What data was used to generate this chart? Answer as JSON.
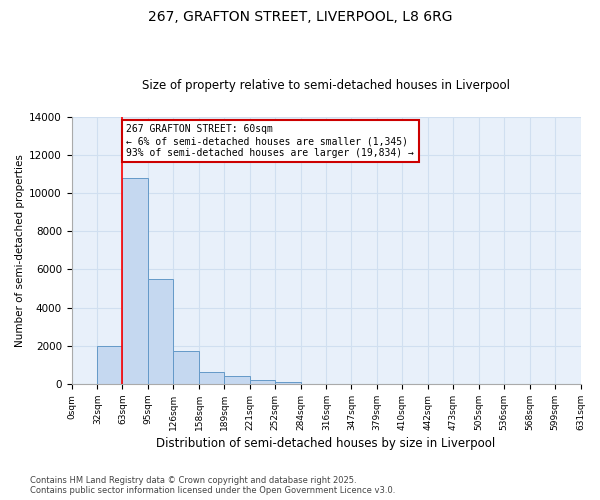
{
  "title": "267, GRAFTON STREET, LIVERPOOL, L8 6RG",
  "subtitle": "Size of property relative to semi-detached houses in Liverpool",
  "xlabel": "Distribution of semi-detached houses by size in Liverpool",
  "ylabel": "Number of semi-detached properties",
  "bin_edges": [
    0,
    32,
    63,
    95,
    126,
    158,
    189,
    221,
    252,
    284,
    316,
    347,
    379,
    410,
    442,
    473,
    505,
    536,
    568,
    599,
    631
  ],
  "bar_heights": [
    0,
    2000,
    10800,
    5500,
    1750,
    650,
    400,
    200,
    100,
    0,
    0,
    0,
    0,
    0,
    0,
    0,
    0,
    0,
    0,
    0
  ],
  "bar_color": "#c5d8f0",
  "bar_edge_color": "#6499c8",
  "grid_color": "#d0dff0",
  "bg_color": "#e8f0fa",
  "red_line_x": 63,
  "annotation_title": "267 GRAFTON STREET: 60sqm",
  "annotation_line1": "← 6% of semi-detached houses are smaller (1,345)",
  "annotation_line2": "93% of semi-detached houses are larger (19,834) →",
  "annotation_box_color": "#ffffff",
  "annotation_edge_color": "#cc0000",
  "ylim": [
    0,
    14000
  ],
  "yticks": [
    0,
    2000,
    4000,
    6000,
    8000,
    10000,
    12000,
    14000
  ],
  "footnote1": "Contains HM Land Registry data © Crown copyright and database right 2025.",
  "footnote2": "Contains public sector information licensed under the Open Government Licence v3.0."
}
